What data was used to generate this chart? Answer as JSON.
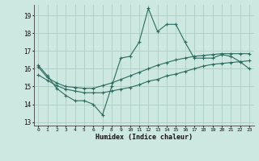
{
  "xlabel": "Humidex (Indice chaleur)",
  "xlim": [
    -0.5,
    23.5
  ],
  "ylim": [
    12.8,
    19.6
  ],
  "yticks": [
    13,
    14,
    15,
    16,
    17,
    18,
    19
  ],
  "xticks": [
    0,
    1,
    2,
    3,
    4,
    5,
    6,
    7,
    8,
    9,
    10,
    11,
    12,
    13,
    14,
    15,
    16,
    17,
    18,
    19,
    20,
    21,
    22,
    23
  ],
  "bg_color": "#cce8e0",
  "line_color": "#2a6b5e",
  "grid_color": "#b0d0c8",
  "line1_y": [
    16.2,
    15.6,
    14.9,
    14.5,
    14.2,
    14.2,
    14.0,
    13.4,
    15.0,
    16.6,
    16.7,
    17.5,
    19.4,
    18.1,
    18.5,
    18.5,
    17.5,
    16.6,
    16.6,
    16.6,
    16.8,
    16.7,
    16.4,
    16.0
  ],
  "line2_y": [
    16.1,
    15.5,
    15.2,
    15.0,
    14.95,
    14.9,
    14.9,
    15.05,
    15.2,
    15.4,
    15.6,
    15.8,
    16.0,
    16.2,
    16.35,
    16.5,
    16.6,
    16.7,
    16.75,
    16.8,
    16.85,
    16.85,
    16.85,
    16.85
  ],
  "line3_y": [
    15.65,
    15.35,
    15.05,
    14.85,
    14.75,
    14.65,
    14.65,
    14.65,
    14.75,
    14.85,
    14.95,
    15.1,
    15.3,
    15.4,
    15.6,
    15.7,
    15.85,
    16.0,
    16.15,
    16.25,
    16.3,
    16.35,
    16.4,
    16.45
  ]
}
